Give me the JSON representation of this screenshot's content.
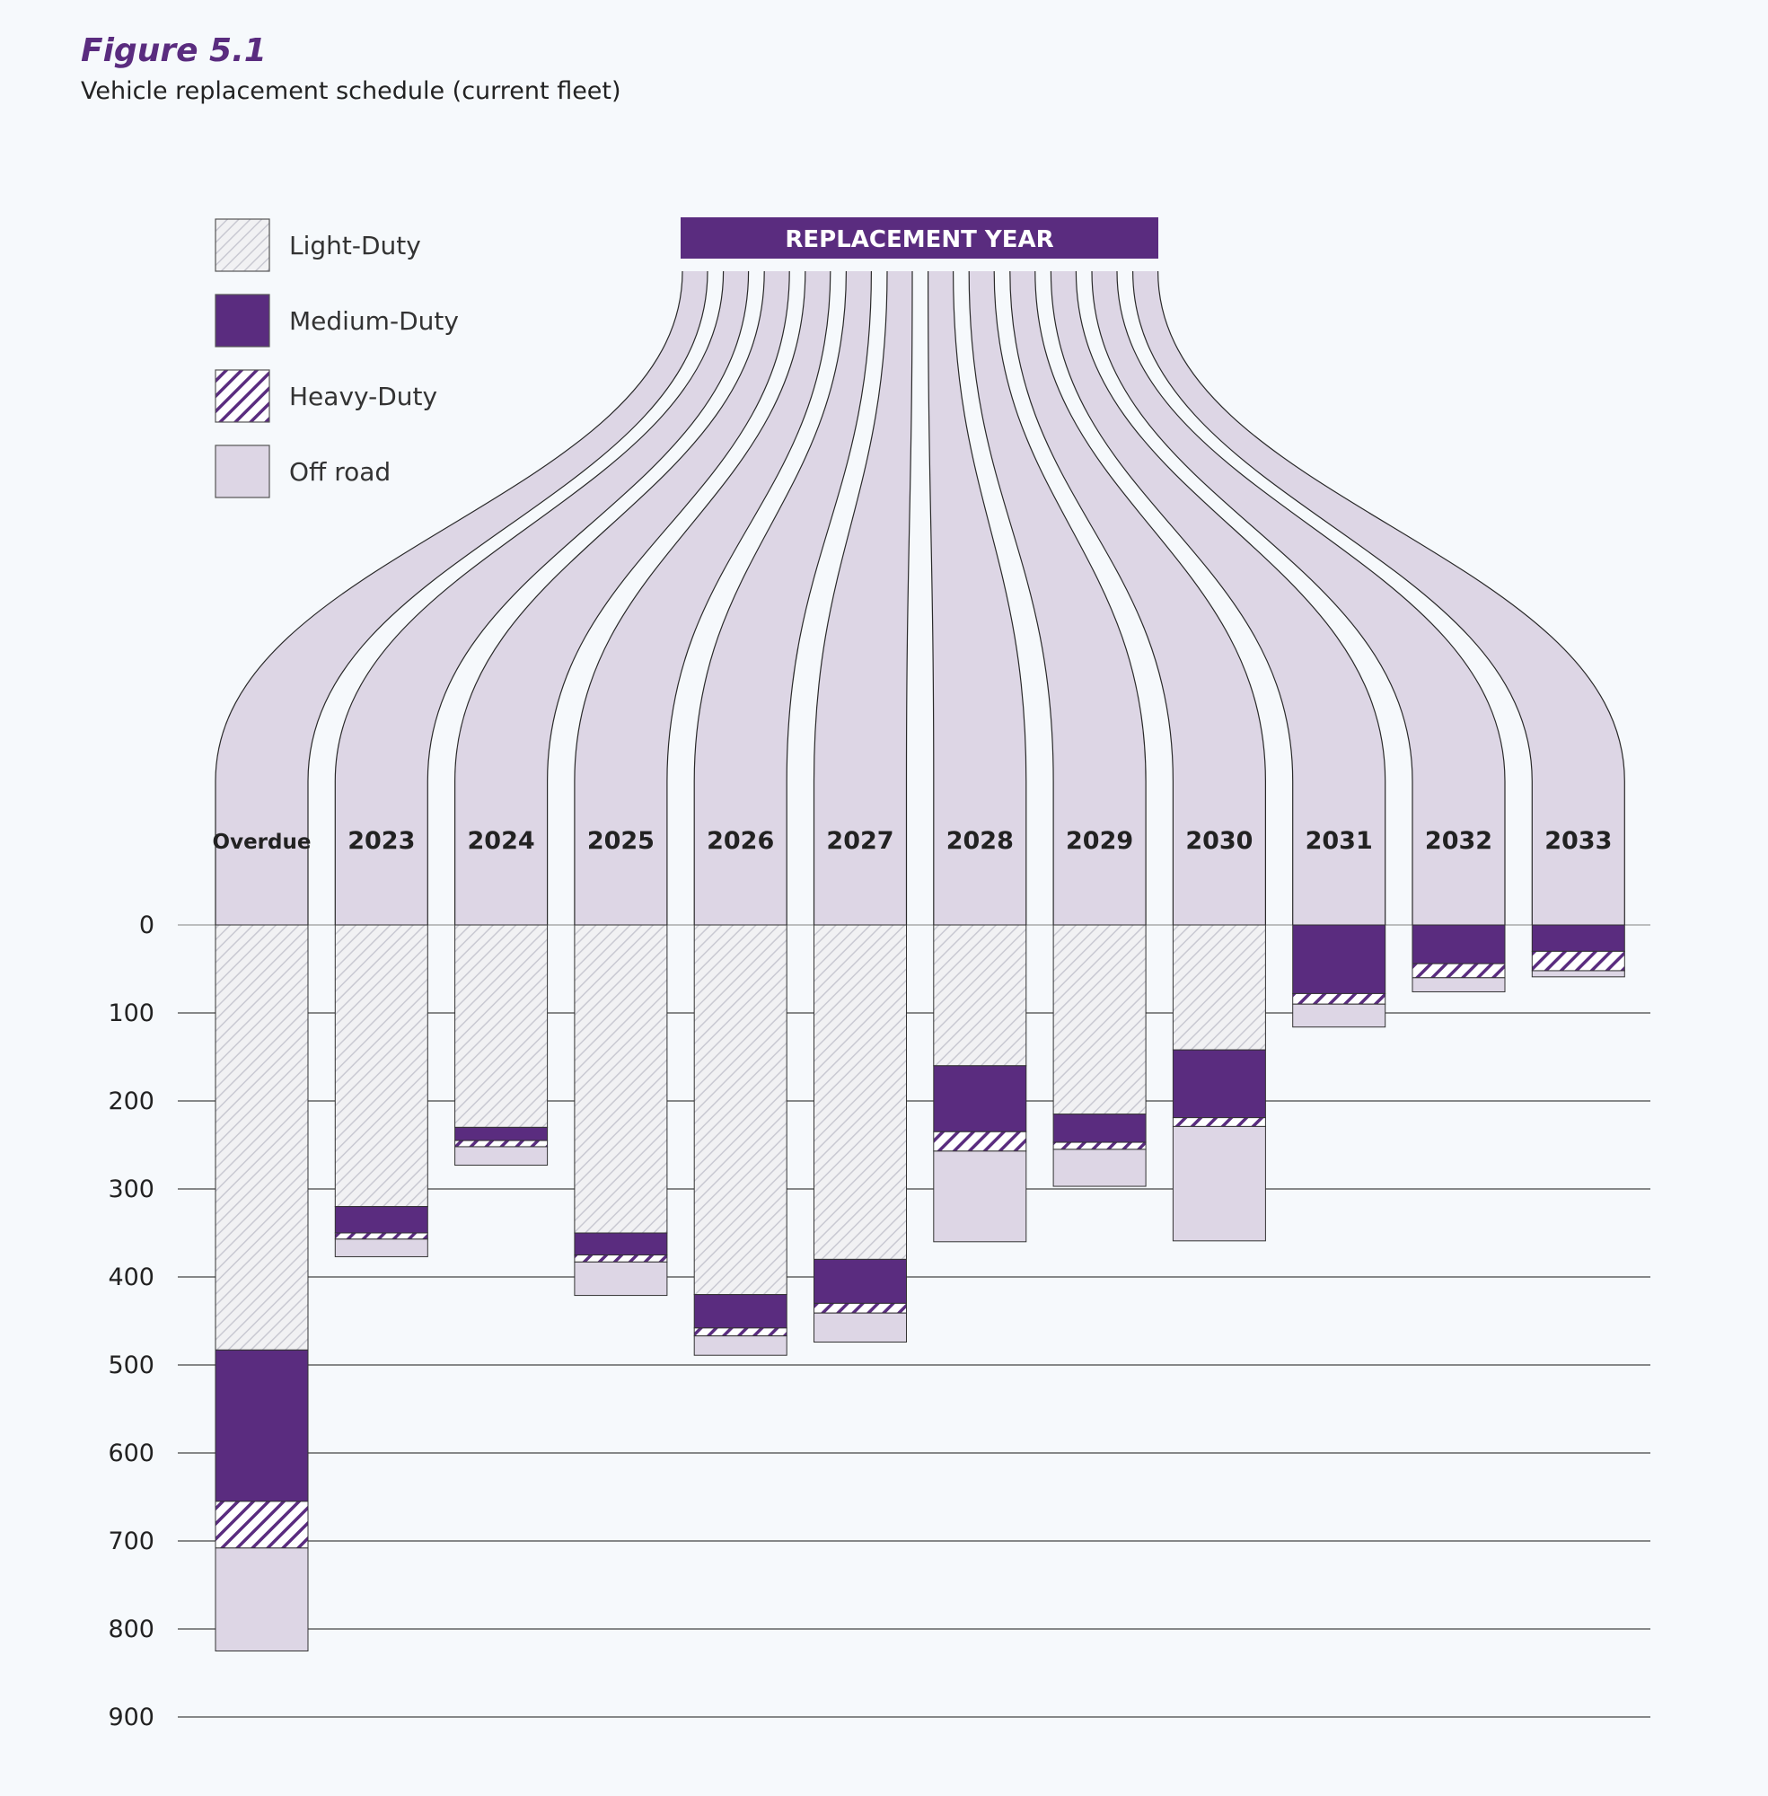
{
  "figure_label": "Figure 5.1",
  "chart_data": {
    "type": "bar",
    "stacked": true,
    "title": "Vehicle replacement schedule (current fleet)",
    "banner": "REPLACEMENT YEAR",
    "categories": [
      "Overdue",
      "2023",
      "2024",
      "2025",
      "2026",
      "2027",
      "2028",
      "2029",
      "2030",
      "2031",
      "2032",
      "2033"
    ],
    "series": [
      {
        "name": "Light-Duty",
        "values": [
          483,
          320,
          230,
          350,
          420,
          380,
          160,
          215,
          142,
          0,
          0,
          0
        ]
      },
      {
        "name": "Medium-Duty",
        "values": [
          172,
          30,
          15,
          25,
          38,
          50,
          75,
          32,
          77,
          78,
          44,
          30
        ]
      },
      {
        "name": "Heavy-Duty",
        "values": [
          53,
          7,
          7,
          8,
          9,
          11,
          22,
          8,
          10,
          12,
          16,
          22
        ]
      },
      {
        "name": "Off road",
        "values": [
          117,
          20,
          21,
          38,
          22,
          33,
          103,
          42,
          130,
          26,
          16,
          7
        ]
      }
    ],
    "yticks": [
      0,
      100,
      200,
      300,
      400,
      500,
      600,
      700,
      800,
      900
    ],
    "ylim": [
      0,
      900
    ],
    "y_inverted": true,
    "legend_position": "top-left",
    "grid": true
  }
}
